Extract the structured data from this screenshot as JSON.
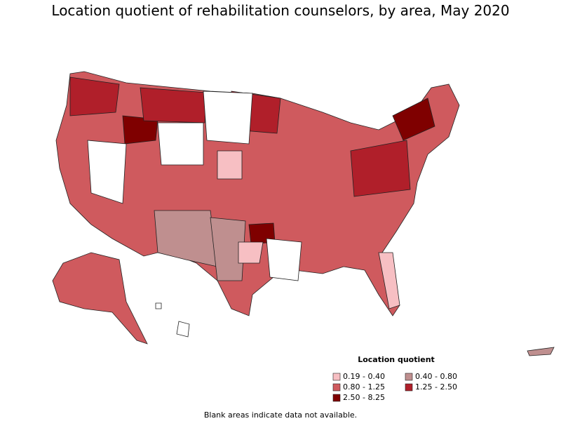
{
  "title": "Location quotient of rehabilitation counselors, by area, May 2020",
  "legend": {
    "title": "Location quotient",
    "items": [
      {
        "label": "0.19 - 0.40",
        "color": "#f7bfc3"
      },
      {
        "label": "0.40 - 0.80",
        "color": "#bf8f8f"
      },
      {
        "label": "0.80 - 1.25",
        "color": "#cf5a5e"
      },
      {
        "label": "1.25 - 2.50",
        "color": "#b01f2a"
      },
      {
        "label": "2.50 - 8.25",
        "color": "#7f0000"
      }
    ]
  },
  "note": "Blank areas indicate data not available."
}
